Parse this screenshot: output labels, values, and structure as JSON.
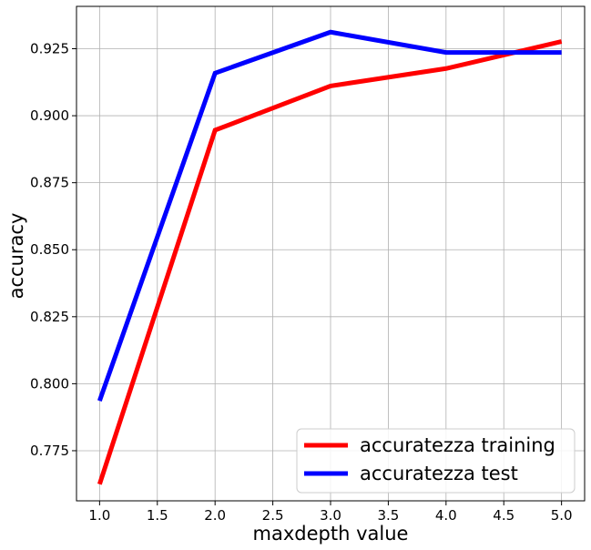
{
  "chart_data": {
    "type": "line",
    "title": "",
    "xlabel": "maxdepth value",
    "ylabel": "accuracy",
    "x": [
      1.0,
      2.0,
      3.0,
      4.0,
      5.0
    ],
    "xlim": [
      0.8,
      5.2
    ],
    "ylim": [
      0.7563,
      0.9408
    ],
    "xticks": [
      1.0,
      1.5,
      2.0,
      2.5,
      3.0,
      3.5,
      4.0,
      4.5,
      5.0
    ],
    "xtick_labels": [
      "1.0",
      "1.5",
      "2.0",
      "2.5",
      "3.0",
      "3.5",
      "4.0",
      "4.5",
      "5.0"
    ],
    "yticks": [
      0.775,
      0.8,
      0.825,
      0.85,
      0.875,
      0.9,
      0.925
    ],
    "ytick_labels": [
      "0.775",
      "0.800",
      "0.825",
      "0.850",
      "0.875",
      "0.900",
      "0.925"
    ],
    "grid": true,
    "legend_position": "lower-right",
    "series": [
      {
        "name": "accuratezza training",
        "color": "#ff0000",
        "values": [
          0.7625,
          0.8946,
          0.9111,
          0.9176,
          0.9277
        ]
      },
      {
        "name": "accuratezza test",
        "color": "#0000ff",
        "values": [
          0.7936,
          0.9159,
          0.9312,
          0.9236,
          0.9236
        ]
      }
    ]
  }
}
